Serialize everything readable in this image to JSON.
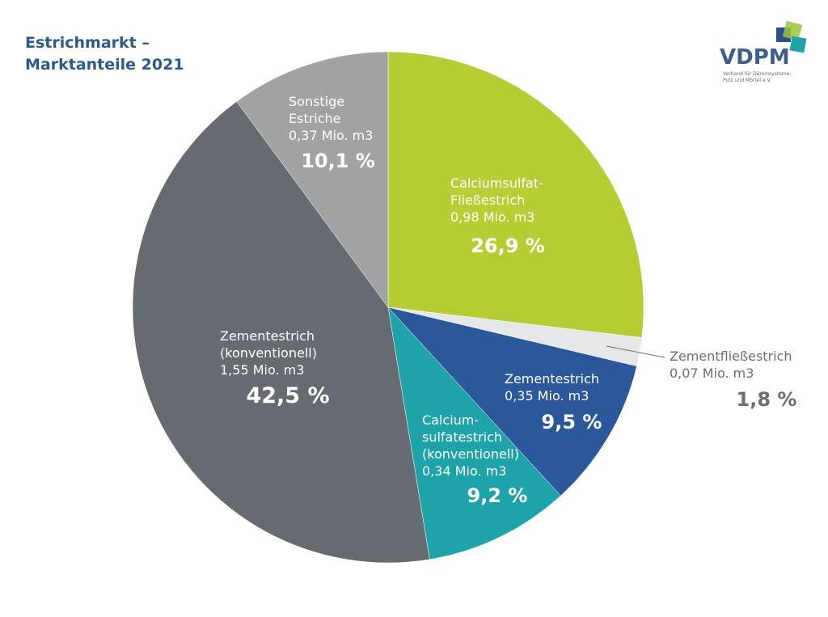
{
  "title": {
    "line1": "Estrichmarkt –",
    "line2": "Marktanteile 2021"
  },
  "logo": {
    "name": "VDPM",
    "sub_line1": "Verband für Dämmsysteme,",
    "sub_line2": "Putz und Mörtel e.V.",
    "colors": [
      "#2d4f8e",
      "#9cc43c",
      "#1fa3a8"
    ]
  },
  "chart_data": {
    "type": "pie",
    "start_angle_deg": 0,
    "direction": "clockwise",
    "slices": [
      {
        "label_lines": [
          "Calciumsulfat-",
          "Fließestrich",
          "0,98 Mio. m3"
        ],
        "percent_label": "26,9 %",
        "value": 26.9,
        "color": "#b6cc32",
        "text_color": "#ffffff"
      },
      {
        "label_lines": [
          "Zementfließestrich",
          "0,07 Mio. m3"
        ],
        "percent_label": "1,8 %",
        "value": 1.8,
        "color": "#e6e7e8",
        "text_color": "#6b6e72",
        "label_outside": true
      },
      {
        "label_lines": [
          "Zementestrich",
          "0,35 Mio. m3"
        ],
        "percent_label": "9,5 %",
        "value": 9.5,
        "color": "#2b579b",
        "text_color": "#ffffff"
      },
      {
        "label_lines": [
          "Calcium-",
          "sulfatestrich",
          "(konventionell)",
          "0,34 Mio. m3"
        ],
        "percent_label": "9,2 %",
        "value": 9.2,
        "color": "#1ea3ab",
        "text_color": "#ffffff"
      },
      {
        "label_lines": [
          "Zementestrich",
          "(konventionell)",
          "1,55 Mio. m3"
        ],
        "percent_label": "42,5 %",
        "value": 42.5,
        "color": "#666a71",
        "text_color": "#ffffff"
      },
      {
        "label_lines": [
          "Sonstige",
          "Estriche",
          "0,37 Mio. m3"
        ],
        "percent_label": "10,1 %",
        "value": 10.1,
        "color": "#a1a2a3",
        "text_color": "#ffffff"
      }
    ]
  }
}
